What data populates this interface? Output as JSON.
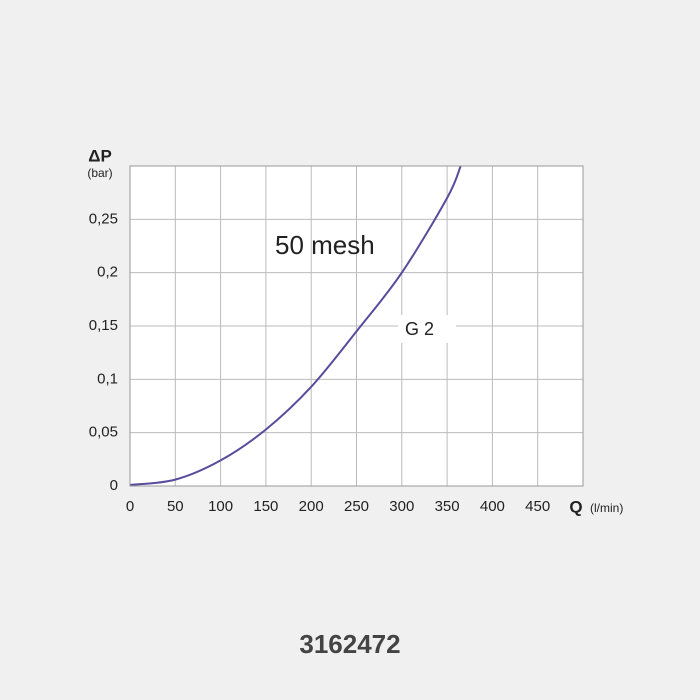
{
  "chart_data": {
    "type": "line",
    "y_label": "ΔP",
    "y_unit": "(bar)",
    "x_label": "Q",
    "x_unit": "(l/min)",
    "annotations": [
      "50 mesh",
      "G 2"
    ],
    "x": [
      0,
      50,
      100,
      150,
      200,
      250,
      300,
      350,
      365
    ],
    "series": [
      {
        "name": "G 2",
        "color": "#5a4b9c",
        "values": [
          0.001,
          0.006,
          0.024,
          0.053,
          0.093,
          0.145,
          0.2,
          0.27,
          0.3
        ]
      }
    ],
    "xlim": [
      0,
      500
    ],
    "xticks": [
      0,
      50,
      100,
      150,
      200,
      250,
      300,
      350,
      400,
      450
    ],
    "ylim": [
      0,
      0.3
    ],
    "yticks": [
      0,
      {
        "value": 0.05,
        "label": "0,05"
      },
      {
        "value": 0.1,
        "label": "0,1"
      },
      {
        "value": 0.15,
        "label": "0,15"
      },
      {
        "value": 0.2,
        "label": "0,2"
      },
      {
        "value": 0.25,
        "label": "0,25"
      }
    ],
    "grid": true
  },
  "product_code": "3162472"
}
